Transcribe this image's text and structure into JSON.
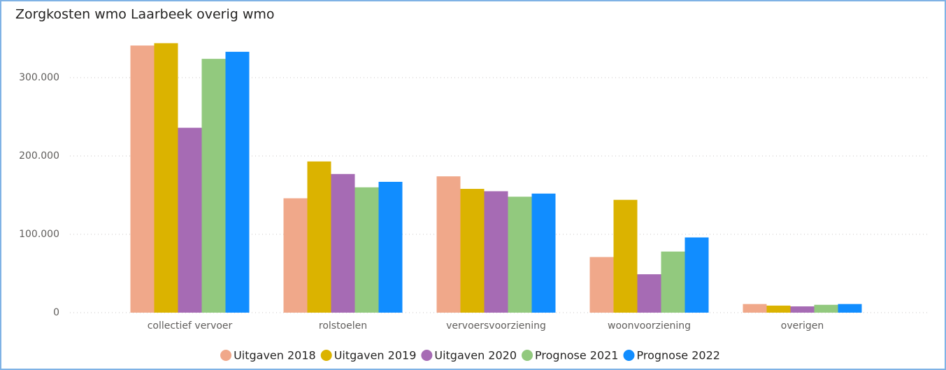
{
  "chart_data": {
    "type": "bar",
    "title": "Zorgkosten wmo Laarbeek overig wmo",
    "categories": [
      "collectief vervoer",
      "rolstoelen",
      "vervoersvoorziening",
      "woonvoorziening",
      "overigen"
    ],
    "series": [
      {
        "name": "Uitgaven 2018",
        "color": "#f0a88a",
        "values": [
          341000,
          146000,
          174000,
          71000,
          11000
        ]
      },
      {
        "name": "Uitgaven 2019",
        "color": "#dbb300",
        "values": [
          344000,
          193000,
          158000,
          144000,
          9000
        ]
      },
      {
        "name": "Uitgaven 2020",
        "color": "#a66bb4",
        "values": [
          236000,
          177000,
          155000,
          49000,
          8000
        ]
      },
      {
        "name": "Prognose 2021",
        "color": "#92c97e",
        "values": [
          324000,
          160000,
          148000,
          78000,
          10000
        ]
      },
      {
        "name": "Prognose 2022",
        "color": "#118dff",
        "values": [
          333000,
          167000,
          152000,
          96000,
          11000
        ]
      }
    ],
    "ylim": [
      0,
      350000
    ],
    "yticks": [
      0,
      {
        "value": 100000,
        "label": "100.000"
      },
      {
        "value": 200000,
        "label": "200.000"
      },
      {
        "value": 300000,
        "label": "300.000"
      }
    ],
    "grid": true,
    "legend": "bottom"
  }
}
